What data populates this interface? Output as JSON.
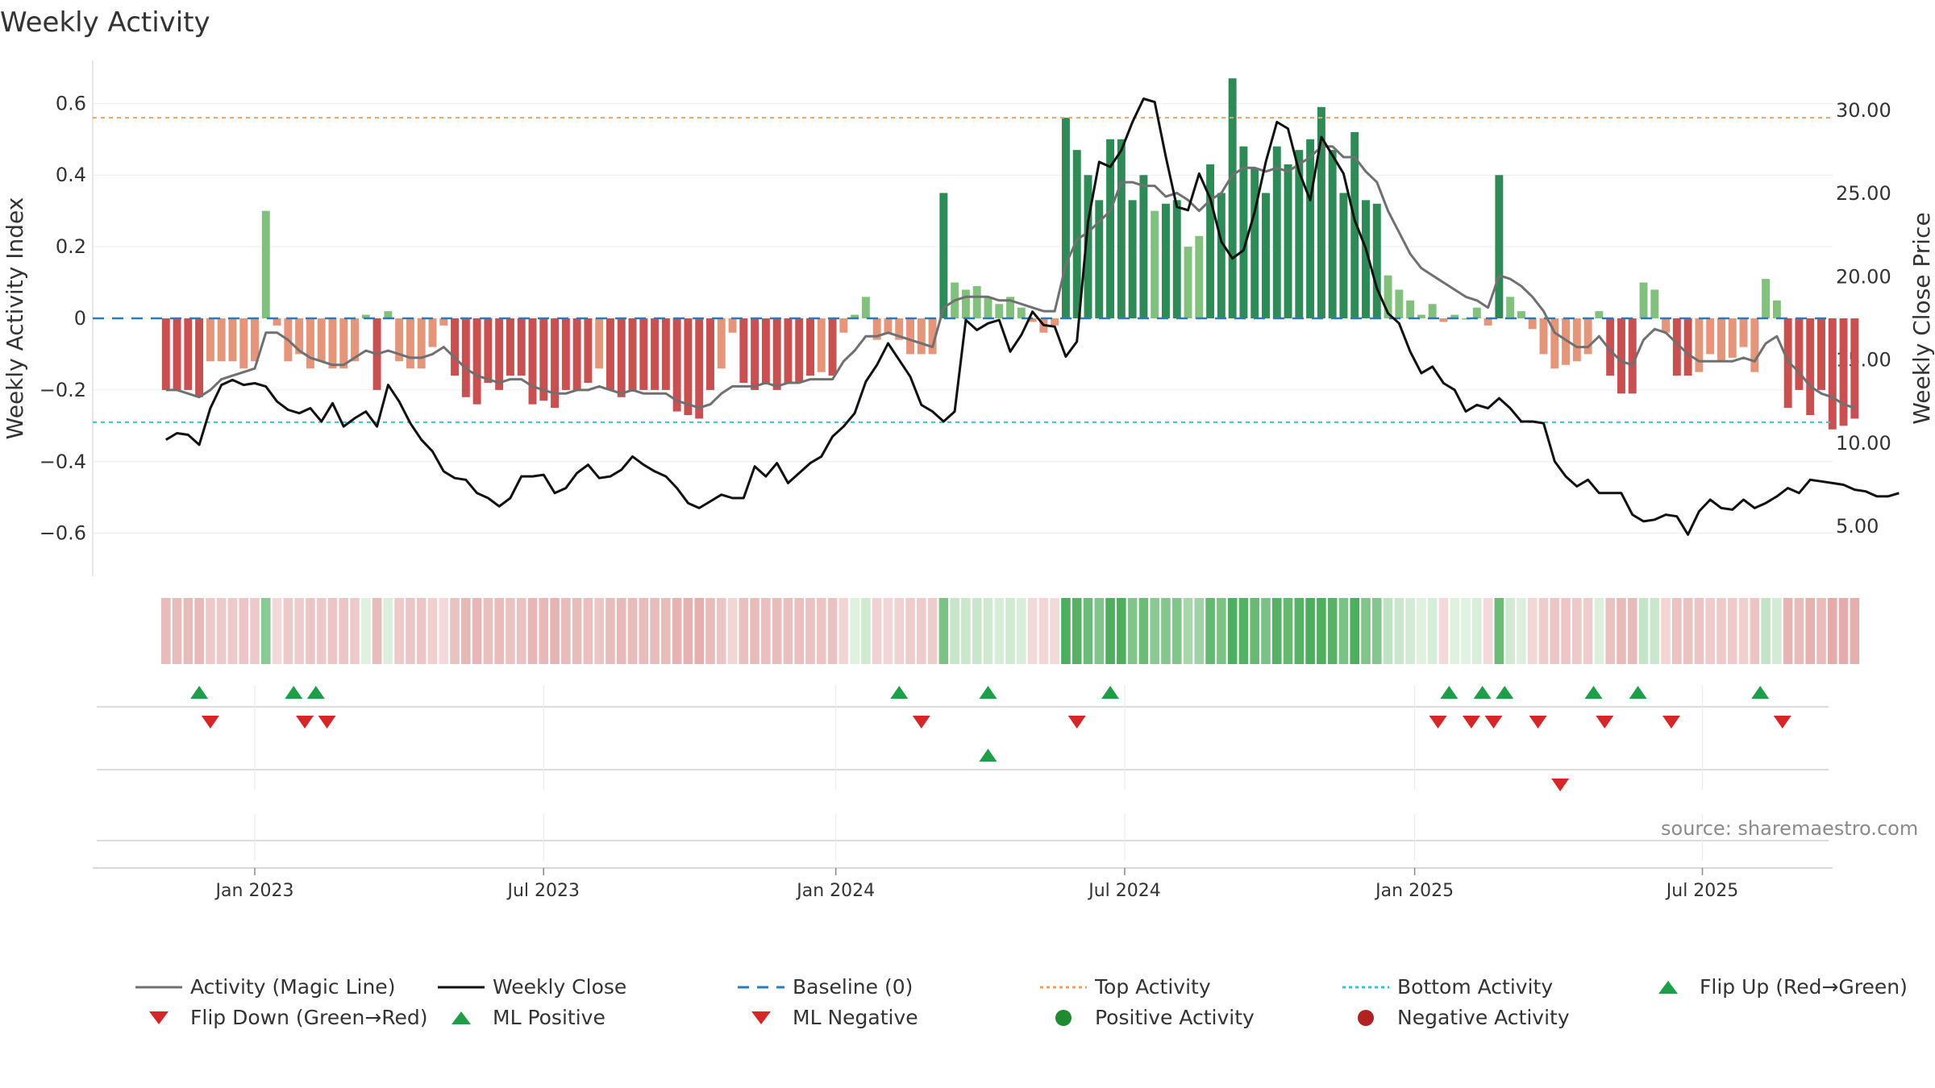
{
  "title": "Weekly Activity",
  "source": "source: sharemaestro.com",
  "colors": {
    "strong_green": "#2e8b57",
    "light_green": "#82c07e",
    "strong_red": "#c85050",
    "light_red": "#e5957a",
    "magic_line": "#707070",
    "close_line": "#111111",
    "baseline": "#2b7bb9",
    "top_line": "#f0a060",
    "bottom_line": "#28c8d8",
    "flip_green": "#1f9e4a",
    "flip_red": "#d62728"
  },
  "legend": [
    {
      "key": "magic",
      "label": "Activity (Magic Line)",
      "icon": "grey-line-icon"
    },
    {
      "key": "close",
      "label": "Weekly Close",
      "icon": "black-line-icon"
    },
    {
      "key": "baseline",
      "label": "Baseline (0)",
      "icon": "blue-dashed-line-icon"
    },
    {
      "key": "top",
      "label": "Top Activity",
      "icon": "orange-dotted-line-icon"
    },
    {
      "key": "bottom",
      "label": "Bottom Activity",
      "icon": "cyan-dotted-line-icon"
    },
    {
      "key": "flip_up",
      "label": "Flip Up (Red→Green)",
      "icon": "green-triangle-up-icon"
    },
    {
      "key": "flip_down",
      "label": "Flip Down (Green→Red)",
      "icon": "red-triangle-down-icon"
    },
    {
      "key": "ml_pos",
      "label": "ML Positive",
      "icon": "green-triangle-up-icon"
    },
    {
      "key": "ml_neg",
      "label": "ML Negative",
      "icon": "red-triangle-down-icon"
    },
    {
      "key": "pos_act",
      "label": "Positive Activity",
      "icon": "green-circle-icon"
    },
    {
      "key": "neg_act",
      "label": "Negative Activity",
      "icon": "red-circle-icon"
    }
  ],
  "chart_data": {
    "type": "bar",
    "title": "Weekly Activity",
    "xlabel": "",
    "ylabel": "Weekly Activity Index",
    "y2label": "Weekly Close Price",
    "ylim": [
      -0.72,
      0.72
    ],
    "y2lim": [
      2.0,
      33.0
    ],
    "yticks": [
      0.6,
      0.4,
      0.2,
      0,
      -0.2,
      -0.4,
      -0.6
    ],
    "ytick_labels": [
      "0.6",
      "0.4",
      "0.2",
      "0",
      "−0.2",
      "−0.4",
      "−0.6"
    ],
    "y2ticks": [
      30,
      25,
      20,
      15,
      10,
      5
    ],
    "y2tick_labels": [
      "30.00",
      "25.00",
      "20.00",
      "15.00",
      "10.00",
      "5.00"
    ],
    "x_start_week": -8,
    "week_count": 153,
    "xticks": [
      {
        "label": "Jan 2023",
        "week": 0
      },
      {
        "label": "Jul 2023",
        "week": 26
      },
      {
        "label": "Jan 2024",
        "week": 52.3
      },
      {
        "label": "Jul 2024",
        "week": 78.3
      },
      {
        "label": "Jan 2025",
        "week": 104.4
      },
      {
        "label": "Jul 2025",
        "week": 130.3
      }
    ],
    "top_activity": 0.56,
    "bottom_activity": -0.29,
    "baseline": 0,
    "activity": [
      -0.2,
      -0.2,
      -0.2,
      -0.22,
      -0.12,
      -0.12,
      -0.12,
      -0.14,
      -0.12,
      0.3,
      -0.02,
      -0.12,
      -0.1,
      -0.14,
      -0.12,
      -0.14,
      -0.14,
      -0.12,
      0.01,
      -0.2,
      0.02,
      -0.12,
      -0.14,
      -0.14,
      -0.08,
      -0.02,
      -0.16,
      -0.22,
      -0.24,
      -0.18,
      -0.2,
      -0.16,
      -0.16,
      -0.24,
      -0.23,
      -0.25,
      -0.2,
      -0.2,
      -0.18,
      -0.14,
      -0.2,
      -0.22,
      -0.2,
      -0.2,
      -0.2,
      -0.2,
      -0.26,
      -0.27,
      -0.28,
      -0.2,
      -0.14,
      -0.04,
      -0.18,
      -0.2,
      -0.18,
      -0.2,
      -0.18,
      -0.18,
      -0.16,
      -0.15,
      -0.16,
      -0.04,
      0.01,
      0.06,
      -0.06,
      -0.04,
      -0.06,
      -0.1,
      -0.1,
      -0.1,
      0.35,
      0.1,
      0.08,
      0.09,
      0.06,
      0.04,
      0.06,
      0.03,
      -0.01,
      -0.04,
      -0.02,
      0.56,
      0.47,
      0.4,
      0.33,
      0.5,
      0.5,
      0.33,
      0.4,
      0.3,
      0.32,
      0.33,
      0.2,
      0.23,
      0.43,
      0.35,
      0.67,
      0.48,
      0.42,
      0.35,
      0.48,
      0.43,
      0.47,
      0.5,
      0.59,
      0.47,
      0.35,
      0.52,
      0.33,
      0.32,
      0.12,
      0.08,
      0.05,
      0.01,
      0.04,
      -0.01,
      0.01,
      0.0,
      0.03,
      -0.02,
      0.4,
      0.06,
      0.02,
      -0.03,
      -0.1,
      -0.14,
      -0.13,
      -0.12,
      -0.1,
      0.02,
      -0.16,
      -0.21,
      -0.21,
      0.1,
      0.08,
      -0.04,
      -0.16,
      -0.16,
      -0.15,
      -0.1,
      -0.12,
      -0.11,
      -0.08,
      -0.15,
      0.11,
      0.05,
      -0.25,
      -0.2,
      -0.27,
      -0.2,
      -0.31,
      -0.3,
      -0.28
    ],
    "magic_line": [
      -0.2,
      -0.2,
      -0.21,
      -0.22,
      -0.2,
      -0.17,
      -0.16,
      -0.15,
      -0.14,
      -0.04,
      -0.04,
      -0.06,
      -0.09,
      -0.11,
      -0.12,
      -0.13,
      -0.13,
      -0.11,
      -0.09,
      -0.1,
      -0.09,
      -0.1,
      -0.11,
      -0.11,
      -0.1,
      -0.08,
      -0.11,
      -0.14,
      -0.16,
      -0.17,
      -0.18,
      -0.17,
      -0.17,
      -0.19,
      -0.2,
      -0.21,
      -0.21,
      -0.2,
      -0.2,
      -0.19,
      -0.2,
      -0.21,
      -0.2,
      -0.21,
      -0.21,
      -0.21,
      -0.23,
      -0.24,
      -0.25,
      -0.24,
      -0.21,
      -0.19,
      -0.19,
      -0.19,
      -0.18,
      -0.19,
      -0.18,
      -0.18,
      -0.17,
      -0.17,
      -0.17,
      -0.12,
      -0.09,
      -0.05,
      -0.05,
      -0.04,
      -0.05,
      -0.06,
      -0.07,
      -0.08,
      0.03,
      0.05,
      0.06,
      0.06,
      0.06,
      0.05,
      0.05,
      0.04,
      0.03,
      0.02,
      0.02,
      0.15,
      0.22,
      0.24,
      0.27,
      0.3,
      0.38,
      0.38,
      0.37,
      0.37,
      0.34,
      0.35,
      0.33,
      0.3,
      0.33,
      0.35,
      0.4,
      0.42,
      0.42,
      0.41,
      0.42,
      0.41,
      0.43,
      0.45,
      0.48,
      0.48,
      0.45,
      0.45,
      0.41,
      0.38,
      0.3,
      0.24,
      0.18,
      0.14,
      0.12,
      0.1,
      0.08,
      0.06,
      0.05,
      0.03,
      0.12,
      0.11,
      0.09,
      0.06,
      0.02,
      -0.04,
      -0.06,
      -0.08,
      -0.08,
      -0.05,
      -0.09,
      -0.12,
      -0.13,
      -0.06,
      -0.03,
      -0.04,
      -0.07,
      -0.1,
      -0.12,
      -0.12,
      -0.12,
      -0.12,
      -0.11,
      -0.12,
      -0.07,
      -0.05,
      -0.12,
      -0.15,
      -0.19,
      -0.21,
      -0.22,
      -0.24,
      -0.25
    ],
    "weekly_close": [
      10.2,
      10.6,
      10.5,
      9.9,
      12.1,
      13.5,
      13.8,
      13.5,
      13.6,
      13.4,
      12.5,
      12.0,
      11.8,
      12.1,
      11.3,
      12.4,
      11.0,
      11.5,
      11.9,
      11.0,
      13.5,
      12.5,
      11.2,
      10.2,
      9.5,
      8.3,
      7.9,
      7.8,
      7.0,
      6.7,
      6.2,
      6.7,
      8.0,
      8.0,
      8.1,
      7.0,
      7.3,
      8.2,
      8.7,
      7.9,
      8.0,
      8.4,
      9.2,
      8.7,
      8.3,
      8.0,
      7.3,
      6.4,
      6.1,
      6.5,
      6.9,
      6.7,
      6.7,
      8.6,
      8.0,
      8.8,
      7.6,
      8.2,
      8.8,
      9.2,
      10.4,
      11.0,
      11.8,
      13.7,
      14.7,
      16.0,
      15.0,
      14.0,
      12.3,
      11.9,
      11.3,
      11.9,
      17.4,
      16.8,
      17.2,
      17.4,
      15.5,
      16.5,
      17.9,
      17.1,
      17.0,
      15.2,
      16.1,
      23.3,
      26.9,
      26.6,
      27.6,
      29.3,
      30.7,
      30.5,
      27.2,
      24.2,
      24.0,
      26.2,
      24.7,
      22.1,
      21.1,
      21.6,
      23.9,
      26.9,
      29.3,
      28.9,
      26.3,
      24.6,
      28.4,
      27.3,
      26.2,
      23.4,
      21.7,
      19.3,
      17.8,
      17.2,
      15.5,
      14.2,
      14.6,
      13.6,
      13.2,
      11.9,
      12.3,
      12.1,
      12.7,
      12.1,
      11.3,
      11.3,
      11.2,
      8.9,
      8.0,
      7.4,
      7.8,
      7.0,
      7.0,
      7.0,
      5.7,
      5.3,
      5.4,
      5.7,
      5.6,
      4.5,
      5.9,
      6.6,
      6.1,
      6.0,
      6.6,
      6.1,
      6.4,
      6.8,
      7.3,
      7.0,
      7.8,
      7.7,
      7.6,
      7.5,
      7.2,
      7.1,
      6.8,
      6.8,
      7.0
    ],
    "flip_up_weeks": [
      -5,
      3.5,
      5.5,
      58,
      66,
      77,
      107.5,
      110.5,
      112.5,
      120.5,
      124.5,
      135.5
    ],
    "flip_down_weeks": [
      -4,
      4.5,
      6.5,
      60,
      74,
      106.5,
      109.5,
      111.5,
      115.5,
      121.5,
      127.5,
      137.5
    ],
    "ml_positive_weeks": [
      66
    ],
    "ml_negative_weeks": [
      117.5
    ]
  }
}
